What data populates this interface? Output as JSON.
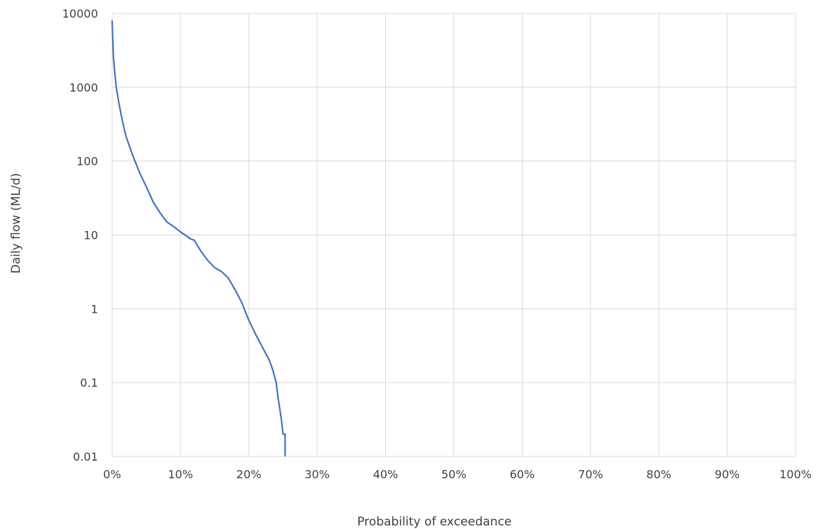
{
  "chart_data": {
    "type": "line",
    "title": "",
    "xlabel": "Probability of exceedance",
    "ylabel": "Daily flow  (ML/d)",
    "x_scale": "linear",
    "y_scale": "log",
    "xlim": [
      0,
      100
    ],
    "ylim": [
      0.01,
      10000
    ],
    "grid": true,
    "legend": "none",
    "x_ticks": [
      "0%",
      "10%",
      "20%",
      "30%",
      "40%",
      "50%",
      "60%",
      "70%",
      "80%",
      "90%",
      "100%"
    ],
    "y_ticks": [
      "0.01",
      "0.1",
      "1",
      "10",
      "100",
      "1000",
      "10000"
    ],
    "x_tick_values": [
      0,
      10,
      20,
      30,
      40,
      50,
      60,
      70,
      80,
      90,
      100
    ],
    "y_tick_values": [
      0.01,
      0.1,
      1,
      10,
      100,
      1000,
      10000
    ],
    "series": [
      {
        "color": "#4472c4",
        "x": [
          0,
          0.1,
          0.2,
          0.4,
          0.6,
          1,
          1.5,
          2,
          3,
          4,
          5,
          6,
          7,
          8,
          9,
          10,
          11,
          11.5,
          12,
          13,
          14,
          15,
          16,
          17,
          18,
          19,
          19.5,
          20,
          21,
          22,
          23,
          23.5,
          24,
          24.3,
          24.6,
          24.8,
          25,
          25.3,
          25.3
        ],
        "y": [
          8000,
          4000,
          2500,
          1500,
          1000,
          600,
          350,
          220,
          120,
          70,
          45,
          28,
          20,
          15,
          13,
          11,
          9.5,
          8.8,
          8.5,
          6,
          4.5,
          3.6,
          3.2,
          2.6,
          1.8,
          1.2,
          0.9,
          0.7,
          0.45,
          0.3,
          0.2,
          0.15,
          0.1,
          0.06,
          0.04,
          0.03,
          0.02,
          0.02,
          0.01
        ]
      }
    ]
  }
}
